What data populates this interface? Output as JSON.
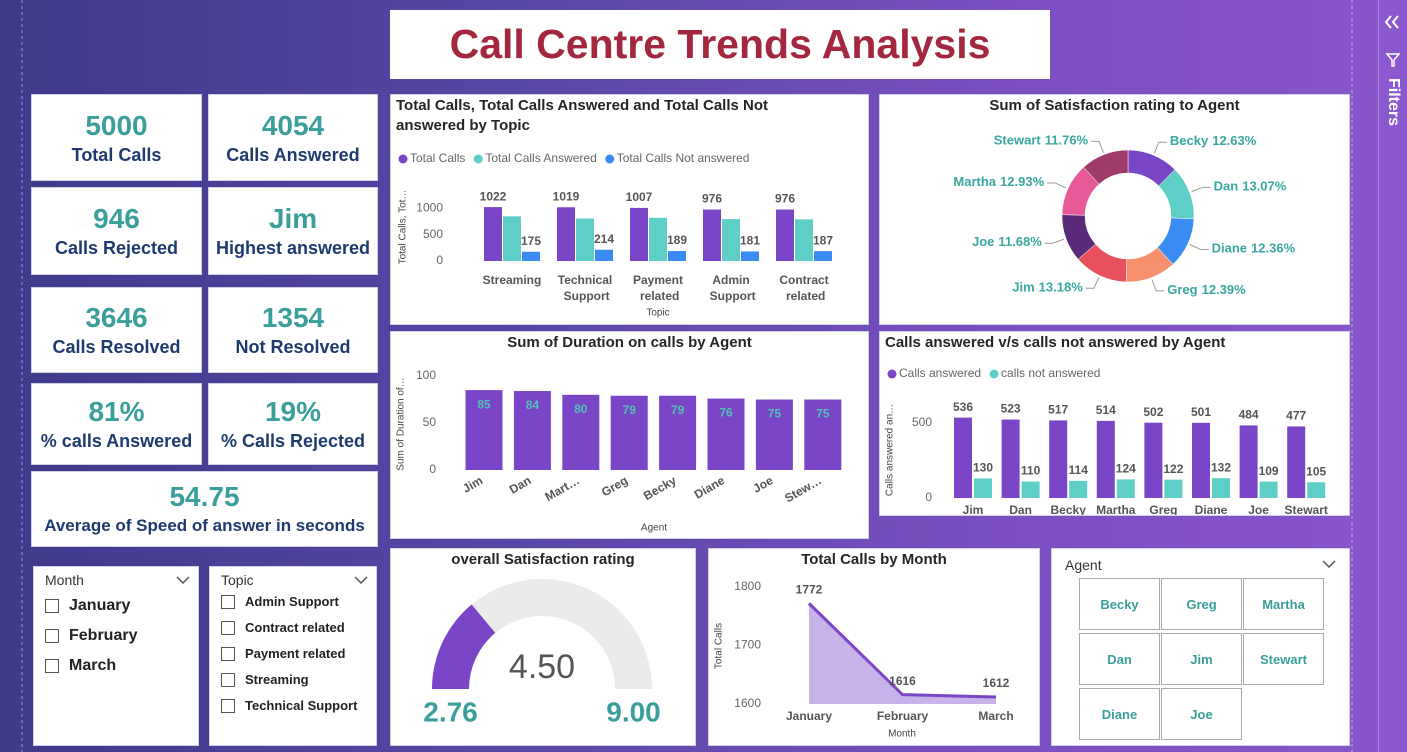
{
  "title": "Call Centre Trends Analysis",
  "filters_label": "Filters",
  "kpis": [
    {
      "value": 5000,
      "label": "Total Calls"
    },
    {
      "value": 4054,
      "label": "Calls Answered"
    },
    {
      "value": 946,
      "label": "Calls Rejected"
    },
    {
      "value": "Jim",
      "label": "Highest answered"
    },
    {
      "value": 3646,
      "label": "Calls Resolved"
    },
    {
      "value": 1354,
      "label": "Not Resolved"
    },
    {
      "value": "81%",
      "label": "% calls Answered"
    },
    {
      "value": "19%",
      "label": "% Calls Rejected"
    },
    {
      "value": 54.75,
      "label": "Average of Speed of answer in seconds"
    }
  ],
  "slicers": [
    {
      "title": "Month",
      "items": [
        "January",
        "February",
        "March"
      ]
    },
    {
      "title": "Topic",
      "items": [
        "Admin Support",
        "Contract related",
        "Payment related",
        "Streaming",
        "Technical Support"
      ]
    },
    {
      "title": "Agent",
      "items": [
        "Becky",
        "Greg",
        "Martha",
        "Dan",
        "Jim",
        "Stewart",
        "Diane",
        "Joe"
      ]
    }
  ],
  "chart_data": [
    {
      "type": "grouped_bar",
      "title": "Total Calls, Total Calls Answered and Total Calls Not answered by Topic",
      "x_label": "Topic",
      "y_label": "Total Calls, Tot…",
      "categories": [
        "Streaming",
        "Technical Support",
        "Payment related",
        "Admin Support",
        "Contract related"
      ],
      "series": [
        {
          "name": "Total Calls",
          "color": "#7a45c6",
          "values": [
            1022,
            1019,
            1007,
            976,
            976
          ],
          "show_value_labels": true
        },
        {
          "name": "Total Calls Answered",
          "color": "#5dcfc6",
          "values": [
            847,
            805,
            818,
            795,
            789
          ],
          "show_value_labels": false
        },
        {
          "name": "Total Calls Not answered",
          "color": "#3b8cf2",
          "values": [
            175,
            214,
            189,
            181,
            187
          ],
          "show_value_labels": true
        }
      ],
      "ylim": [
        0,
        1100
      ],
      "yticks": [
        0,
        500,
        1000
      ],
      "legend": "top-left",
      "grid": false
    },
    {
      "type": "donut",
      "title": "Sum of Satisfaction rating to Agent",
      "categories": [
        "Becky",
        "Dan",
        "Diane",
        "Greg",
        "Jim",
        "Joe",
        "Martha",
        "Stewart"
      ],
      "values": [
        12.63,
        13.07,
        12.36,
        12.39,
        13.18,
        11.68,
        12.93,
        11.76
      ],
      "value_labels": [
        "12.63%",
        "13.07%",
        "12.36%",
        "12.39%",
        "13.18%",
        "11.68%",
        "12.93%",
        "11.76%"
      ],
      "colors": [
        "#7a45c6",
        "#5dcfc6",
        "#3b8cf2",
        "#f7906f",
        "#e8505b",
        "#5a2a78",
        "#e8599a",
        "#a03c6c"
      ]
    },
    {
      "type": "bar",
      "title": "Sum of Duration on calls by Agent",
      "x_label": "Agent",
      "y_label": "Sum of Duration of…",
      "categories": [
        "Jim",
        "Dan",
        "Mart…",
        "Greg",
        "Becky",
        "Diane",
        "Joe",
        "Stew…"
      ],
      "values": [
        85,
        84,
        80,
        79,
        79,
        76,
        75,
        75
      ],
      "color": "#7a45c6",
      "ylim": [
        0,
        100
      ],
      "yticks": [
        0,
        50,
        100
      ],
      "grid": false
    },
    {
      "type": "grouped_bar",
      "title": "Calls answered v/s calls not answered by Agent",
      "x_label": "Agent",
      "y_label": "Calls answered an…",
      "categories": [
        "Jim",
        "Dan",
        "Becky",
        "Martha",
        "Greg",
        "Diane",
        "Joe",
        "Stewart"
      ],
      "series": [
        {
          "name": "Calls answered",
          "color": "#7a45c6",
          "values": [
            536,
            523,
            517,
            514,
            502,
            501,
            484,
            477
          ],
          "show_value_labels": true
        },
        {
          "name": "calls not answered",
          "color": "#5dcfc6",
          "values": [
            130,
            110,
            114,
            124,
            122,
            132,
            109,
            105
          ],
          "show_value_labels": true
        }
      ],
      "ylim": [
        0,
        600
      ],
      "yticks": [
        0,
        500
      ],
      "legend": "top-left",
      "grid": false
    },
    {
      "type": "gauge",
      "title": "overall Satisfaction rating",
      "value": {
        "value": 4.5,
        "label": "4.50"
      },
      "min": 2.76,
      "max": {
        "value": 9,
        "label": "9.00"
      },
      "color": "#7a45c6"
    },
    {
      "type": "area",
      "title": "Total Calls by Month",
      "x_label": "Month",
      "y_label": "Total Calls",
      "categories": [
        "January",
        "February",
        "March"
      ],
      "values": [
        1772,
        1616,
        1612
      ],
      "color": "#7a45c6",
      "ylim": [
        1600,
        1800
      ],
      "yticks": [
        1600,
        1700,
        1800
      ]
    }
  ]
}
